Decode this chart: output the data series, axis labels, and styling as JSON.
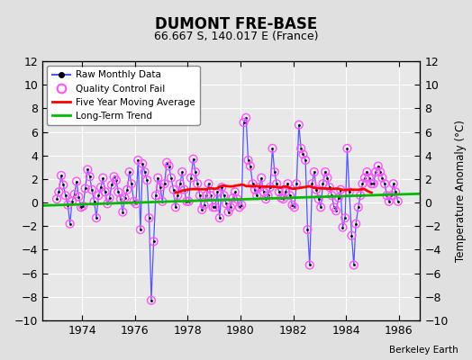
{
  "title": "DUMONT FRE-BASE",
  "subtitle": "66.667 S, 140.017 E (France)",
  "ylabel": "Temperature Anomaly (°C)",
  "credit": "Berkeley Earth",
  "xlim": [
    1972.5,
    1986.8
  ],
  "ylim": [
    -10,
    12
  ],
  "yticks": [
    -10,
    -8,
    -6,
    -4,
    -2,
    0,
    2,
    4,
    6,
    8,
    10,
    12
  ],
  "xticks": [
    1974,
    1976,
    1978,
    1980,
    1982,
    1984,
    1986
  ],
  "bg_color": "#e0e0e0",
  "plot_bg_color": "#e8e8e8",
  "grid_color": "#ffffff",
  "raw_color": "#5555ff",
  "raw_marker_color": "#000000",
  "qc_fail_color": "#ff55ff",
  "moving_avg_color": "#ff0000",
  "trend_color": "#00bb00",
  "raw_data_x": [
    1973.04,
    1973.12,
    1973.21,
    1973.29,
    1973.37,
    1973.46,
    1973.54,
    1973.62,
    1973.71,
    1973.79,
    1973.87,
    1973.96,
    1974.04,
    1974.12,
    1974.21,
    1974.29,
    1974.37,
    1974.46,
    1974.54,
    1974.62,
    1974.71,
    1974.79,
    1974.87,
    1974.96,
    1975.04,
    1975.12,
    1975.21,
    1975.29,
    1975.37,
    1975.46,
    1975.54,
    1975.62,
    1975.71,
    1975.79,
    1975.87,
    1975.96,
    1976.04,
    1976.12,
    1976.21,
    1976.29,
    1976.37,
    1976.46,
    1976.54,
    1976.62,
    1976.71,
    1976.79,
    1976.87,
    1976.96,
    1977.04,
    1977.12,
    1977.21,
    1977.29,
    1977.37,
    1977.46,
    1977.54,
    1977.62,
    1977.71,
    1977.79,
    1977.87,
    1977.96,
    1978.04,
    1978.12,
    1978.21,
    1978.29,
    1978.37,
    1978.46,
    1978.54,
    1978.62,
    1978.71,
    1978.79,
    1978.87,
    1978.96,
    1979.04,
    1979.12,
    1979.21,
    1979.29,
    1979.37,
    1979.46,
    1979.54,
    1979.62,
    1979.71,
    1979.79,
    1979.87,
    1979.96,
    1980.04,
    1980.12,
    1980.21,
    1980.29,
    1980.37,
    1980.46,
    1980.54,
    1980.62,
    1980.71,
    1980.79,
    1980.87,
    1980.96,
    1981.04,
    1981.12,
    1981.21,
    1981.29,
    1981.37,
    1981.46,
    1981.54,
    1981.62,
    1981.71,
    1981.79,
    1981.87,
    1981.96,
    1982.04,
    1982.12,
    1982.21,
    1982.29,
    1982.37,
    1982.46,
    1982.54,
    1982.62,
    1982.71,
    1982.79,
    1982.87,
    1982.96,
    1983.04,
    1983.12,
    1983.21,
    1983.29,
    1983.37,
    1983.46,
    1983.54,
    1983.62,
    1983.71,
    1983.79,
    1983.87,
    1983.96,
    1984.04,
    1984.12,
    1984.21,
    1984.29,
    1984.37,
    1984.46,
    1984.54,
    1984.62,
    1984.71,
    1984.79,
    1984.87,
    1984.96,
    1985.04,
    1985.12,
    1985.21,
    1985.29,
    1985.37,
    1985.46,
    1985.54,
    1985.62,
    1985.71,
    1985.79,
    1985.87,
    1985.96
  ],
  "raw_data_y": [
    0.3,
    0.9,
    2.3,
    1.5,
    0.6,
    -0.2,
    -1.8,
    0.1,
    0.7,
    1.8,
    0.5,
    -0.4,
    -0.3,
    1.2,
    2.8,
    2.2,
    1.1,
    0.1,
    -1.3,
    0.6,
    1.3,
    2.1,
    0.9,
    -0.1,
    0.4,
    1.5,
    2.2,
    1.9,
    0.9,
    0.3,
    -0.8,
    0.4,
    1.1,
    2.6,
    1.6,
    0.1,
    -0.1,
    3.6,
    -2.3,
    3.3,
    2.6,
    1.9,
    -1.3,
    -8.3,
    -3.3,
    0.6,
    2.1,
    1.3,
    0.1,
    1.6,
    3.4,
    3.1,
    2.1,
    1.1,
    -0.4,
    0.6,
    1.6,
    2.6,
    1.1,
    0.1,
    0.1,
    2.1,
    3.7,
    2.6,
    1.6,
    0.6,
    -0.6,
    -0.2,
    0.6,
    1.6,
    0.6,
    -0.4,
    -0.4,
    0.9,
    -1.3,
    1.3,
    0.6,
    -0.1,
    -0.8,
    -0.4,
    0.4,
    0.9,
    0.3,
    -0.4,
    -0.2,
    6.8,
    7.2,
    3.6,
    3.1,
    1.6,
    1.1,
    0.6,
    1.3,
    2.1,
    0.9,
    0.3,
    0.6,
    1.3,
    4.6,
    2.6,
    1.6,
    0.9,
    0.4,
    0.3,
    0.9,
    1.6,
    0.6,
    -0.2,
    -0.4,
    1.6,
    6.6,
    4.6,
    4.1,
    3.6,
    -2.3,
    -5.3,
    1.6,
    2.6,
    1.1,
    0.3,
    -0.4,
    1.6,
    2.6,
    2.1,
    1.3,
    0.6,
    -0.4,
    -0.7,
    0.4,
    1.1,
    -2.1,
    -1.3,
    4.6,
    0.9,
    -2.8,
    -5.3,
    -1.8,
    -0.4,
    0.6,
    1.6,
    2.1,
    2.6,
    2.1,
    1.6,
    1.6,
    2.6,
    3.1,
    2.6,
    2.1,
    1.6,
    0.6,
    0.1,
    0.6,
    1.6,
    0.9,
    0.1
  ],
  "qc_fail_x": [
    1973.04,
    1973.12,
    1973.21,
    1973.29,
    1973.37,
    1973.46,
    1973.54,
    1973.62,
    1973.71,
    1973.79,
    1973.87,
    1973.96,
    1974.04,
    1974.12,
    1974.21,
    1974.29,
    1974.37,
    1974.46,
    1974.54,
    1974.62,
    1974.71,
    1974.79,
    1974.87,
    1974.96,
    1975.04,
    1975.12,
    1975.21,
    1975.29,
    1975.37,
    1975.46,
    1975.54,
    1975.62,
    1975.71,
    1975.79,
    1975.87,
    1975.96,
    1976.04,
    1976.12,
    1976.21,
    1976.29,
    1976.37,
    1976.46,
    1976.54,
    1976.62,
    1976.71,
    1976.79,
    1976.87,
    1976.96,
    1977.04,
    1977.12,
    1977.21,
    1977.29,
    1977.37,
    1977.46,
    1977.54,
    1977.62,
    1977.71,
    1977.79,
    1977.87,
    1977.96,
    1978.04,
    1978.12,
    1978.21,
    1978.29,
    1978.37,
    1978.46,
    1978.54,
    1978.62,
    1978.71,
    1978.79,
    1978.87,
    1978.96,
    1979.04,
    1979.12,
    1979.21,
    1979.29,
    1979.37,
    1979.46,
    1979.54,
    1979.62,
    1979.71,
    1979.79,
    1979.87,
    1979.96,
    1980.04,
    1980.12,
    1980.21,
    1980.29,
    1980.37,
    1980.46,
    1980.54,
    1980.62,
    1980.71,
    1980.79,
    1980.87,
    1980.96,
    1981.04,
    1981.12,
    1981.21,
    1981.29,
    1981.37,
    1981.46,
    1981.54,
    1981.62,
    1981.71,
    1981.79,
    1981.87,
    1981.96,
    1982.04,
    1982.12,
    1982.21,
    1982.29,
    1982.37,
    1982.46,
    1982.54,
    1982.62,
    1982.71,
    1982.79,
    1982.87,
    1982.96,
    1983.04,
    1983.12,
    1983.21,
    1983.29,
    1983.37,
    1983.46,
    1983.54,
    1983.62,
    1983.71,
    1983.79,
    1983.87,
    1983.96,
    1984.04,
    1984.12,
    1984.21,
    1984.29,
    1984.37,
    1984.46,
    1984.54,
    1984.62,
    1984.71,
    1984.79,
    1984.87,
    1984.96,
    1985.04,
    1985.12,
    1985.21,
    1985.29,
    1985.37,
    1985.46,
    1985.54,
    1985.62,
    1985.71,
    1985.79,
    1985.87,
    1985.96
  ],
  "trend_x": [
    1972.5,
    1986.8
  ],
  "trend_y": [
    -0.25,
    0.75
  ]
}
